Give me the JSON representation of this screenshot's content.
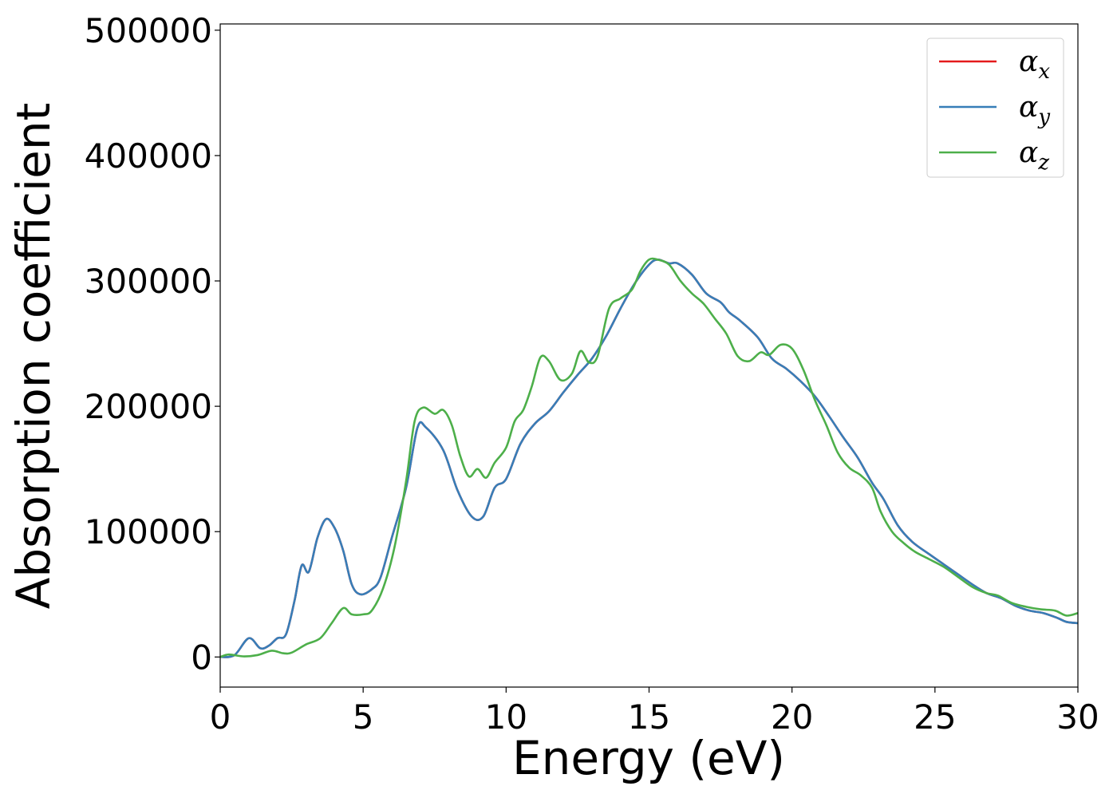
{
  "chart_data": {
    "type": "line",
    "xlabel": "Energy (eV)",
    "ylabel": "Absorption coefficient",
    "xlim": [
      0,
      30
    ],
    "ylim": [
      -24000,
      505000
    ],
    "x_ticks": [
      0,
      5,
      10,
      15,
      20,
      25,
      30
    ],
    "y_ticks": [
      0,
      100000,
      200000,
      300000,
      400000,
      500000
    ],
    "grid": false,
    "legend_position": "top-right",
    "series": [
      {
        "name": "α",
        "subscript": "x",
        "color": "#e41a1c",
        "points": [
          [
            0,
            0
          ],
          [
            0.5,
            1500
          ],
          [
            1,
            15000
          ],
          [
            1.4,
            7000
          ],
          [
            1.7,
            9000
          ],
          [
            2,
            15000
          ],
          [
            2.3,
            18000
          ],
          [
            2.6,
            45000
          ],
          [
            2.85,
            73000
          ],
          [
            3.1,
            68000
          ],
          [
            3.4,
            95000
          ],
          [
            3.7,
            110000
          ],
          [
            4,
            103000
          ],
          [
            4.3,
            85000
          ],
          [
            4.6,
            58000
          ],
          [
            4.9,
            50000
          ],
          [
            5.3,
            54000
          ],
          [
            5.6,
            63000
          ],
          [
            6,
            95000
          ],
          [
            6.5,
            135000
          ],
          [
            6.9,
            183000
          ],
          [
            7.2,
            183000
          ],
          [
            7.8,
            165000
          ],
          [
            8.3,
            133000
          ],
          [
            8.8,
            112000
          ],
          [
            9.2,
            112000
          ],
          [
            9.6,
            135000
          ],
          [
            10,
            142000
          ],
          [
            10.5,
            170000
          ],
          [
            11,
            186000
          ],
          [
            11.5,
            196000
          ],
          [
            12,
            211000
          ],
          [
            12.5,
            225000
          ],
          [
            13,
            238000
          ],
          [
            13.5,
            256000
          ],
          [
            14,
            278000
          ],
          [
            14.5,
            298000
          ],
          [
            15,
            313000
          ],
          [
            15.3,
            317000
          ],
          [
            15.7,
            314000
          ],
          [
            16,
            314000
          ],
          [
            16.5,
            305000
          ],
          [
            17,
            290000
          ],
          [
            17.5,
            283000
          ],
          [
            17.8,
            275000
          ],
          [
            18.2,
            268000
          ],
          [
            18.8,
            255000
          ],
          [
            19.3,
            238000
          ],
          [
            19.8,
            230000
          ],
          [
            20.3,
            220000
          ],
          [
            20.8,
            208000
          ],
          [
            21.3,
            192000
          ],
          [
            21.8,
            175000
          ],
          [
            22.3,
            159000
          ],
          [
            22.8,
            139000
          ],
          [
            23.2,
            126000
          ],
          [
            23.7,
            105000
          ],
          [
            24.2,
            92000
          ],
          [
            24.8,
            82000
          ],
          [
            25.3,
            74000
          ],
          [
            25.8,
            66000
          ],
          [
            26.3,
            58000
          ],
          [
            26.8,
            51000
          ],
          [
            27.3,
            47000
          ],
          [
            27.8,
            41000
          ],
          [
            28.3,
            37000
          ],
          [
            28.8,
            35000
          ],
          [
            29.3,
            31000
          ],
          [
            29.6,
            28000
          ],
          [
            30,
            27000
          ]
        ]
      },
      {
        "name": "α",
        "subscript": "y",
        "color": "#377eb8",
        "points": [
          [
            0,
            0
          ],
          [
            0.5,
            1500
          ],
          [
            1,
            15000
          ],
          [
            1.4,
            7000
          ],
          [
            1.7,
            9000
          ],
          [
            2,
            15000
          ],
          [
            2.3,
            18000
          ],
          [
            2.6,
            45000
          ],
          [
            2.85,
            73000
          ],
          [
            3.1,
            68000
          ],
          [
            3.4,
            95000
          ],
          [
            3.7,
            110000
          ],
          [
            4,
            103000
          ],
          [
            4.3,
            85000
          ],
          [
            4.6,
            58000
          ],
          [
            4.9,
            50000
          ],
          [
            5.3,
            54000
          ],
          [
            5.6,
            63000
          ],
          [
            6,
            95000
          ],
          [
            6.5,
            135000
          ],
          [
            6.9,
            183000
          ],
          [
            7.2,
            183000
          ],
          [
            7.8,
            165000
          ],
          [
            8.3,
            133000
          ],
          [
            8.8,
            112000
          ],
          [
            9.2,
            112000
          ],
          [
            9.6,
            135000
          ],
          [
            10,
            142000
          ],
          [
            10.5,
            170000
          ],
          [
            11,
            186000
          ],
          [
            11.5,
            196000
          ],
          [
            12,
            211000
          ],
          [
            12.5,
            225000
          ],
          [
            13,
            238000
          ],
          [
            13.5,
            256000
          ],
          [
            14,
            278000
          ],
          [
            14.5,
            298000
          ],
          [
            15,
            313000
          ],
          [
            15.3,
            317000
          ],
          [
            15.7,
            314000
          ],
          [
            16,
            314000
          ],
          [
            16.5,
            305000
          ],
          [
            17,
            290000
          ],
          [
            17.5,
            283000
          ],
          [
            17.8,
            275000
          ],
          [
            18.2,
            268000
          ],
          [
            18.8,
            255000
          ],
          [
            19.3,
            238000
          ],
          [
            19.8,
            230000
          ],
          [
            20.3,
            220000
          ],
          [
            20.8,
            208000
          ],
          [
            21.3,
            192000
          ],
          [
            21.8,
            175000
          ],
          [
            22.3,
            159000
          ],
          [
            22.8,
            139000
          ],
          [
            23.2,
            126000
          ],
          [
            23.7,
            105000
          ],
          [
            24.2,
            92000
          ],
          [
            24.8,
            82000
          ],
          [
            25.3,
            74000
          ],
          [
            25.8,
            66000
          ],
          [
            26.3,
            58000
          ],
          [
            26.8,
            51000
          ],
          [
            27.3,
            47000
          ],
          [
            27.8,
            41000
          ],
          [
            28.3,
            37000
          ],
          [
            28.8,
            35000
          ],
          [
            29.3,
            31000
          ],
          [
            29.6,
            28000
          ],
          [
            30,
            27000
          ]
        ]
      },
      {
        "name": "α",
        "subscript": "z",
        "color": "#4daf4a",
        "points": [
          [
            0,
            0
          ],
          [
            0.3,
            2000
          ],
          [
            0.8,
            500
          ],
          [
            1.3,
            1500
          ],
          [
            1.8,
            5000
          ],
          [
            2.2,
            3000
          ],
          [
            2.5,
            3500
          ],
          [
            3,
            10000
          ],
          [
            3.5,
            15000
          ],
          [
            3.9,
            27000
          ],
          [
            4.3,
            39000
          ],
          [
            4.6,
            34000
          ],
          [
            5,
            34000
          ],
          [
            5.3,
            37000
          ],
          [
            5.7,
            55000
          ],
          [
            6.1,
            88000
          ],
          [
            6.5,
            140000
          ],
          [
            6.8,
            188000
          ],
          [
            7.1,
            199000
          ],
          [
            7.5,
            194000
          ],
          [
            7.8,
            197000
          ],
          [
            8.1,
            185000
          ],
          [
            8.4,
            160000
          ],
          [
            8.7,
            144000
          ],
          [
            9,
            150000
          ],
          [
            9.3,
            143000
          ],
          [
            9.6,
            155000
          ],
          [
            10,
            167000
          ],
          [
            10.3,
            188000
          ],
          [
            10.6,
            197000
          ],
          [
            10.9,
            216000
          ],
          [
            11.2,
            239000
          ],
          [
            11.5,
            236000
          ],
          [
            11.9,
            221000
          ],
          [
            12.3,
            226000
          ],
          [
            12.6,
            244000
          ],
          [
            12.9,
            235000
          ],
          [
            13.2,
            240000
          ],
          [
            13.6,
            278000
          ],
          [
            14,
            286000
          ],
          [
            14.4,
            293000
          ],
          [
            14.7,
            308000
          ],
          [
            15,
            317000
          ],
          [
            15.3,
            317000
          ],
          [
            15.7,
            313000
          ],
          [
            16.1,
            300000
          ],
          [
            16.5,
            290000
          ],
          [
            16.9,
            282000
          ],
          [
            17.3,
            270000
          ],
          [
            17.7,
            258000
          ],
          [
            18.1,
            240000
          ],
          [
            18.5,
            236000
          ],
          [
            18.9,
            243000
          ],
          [
            19.2,
            241000
          ],
          [
            19.6,
            249000
          ],
          [
            20,
            246000
          ],
          [
            20.4,
            229000
          ],
          [
            20.8,
            205000
          ],
          [
            21.2,
            185000
          ],
          [
            21.6,
            163000
          ],
          [
            22,
            151000
          ],
          [
            22.4,
            145000
          ],
          [
            22.8,
            135000
          ],
          [
            23.1,
            116000
          ],
          [
            23.5,
            100000
          ],
          [
            23.9,
            91000
          ],
          [
            24.3,
            84000
          ],
          [
            24.8,
            78000
          ],
          [
            25.3,
            72000
          ],
          [
            25.8,
            64000
          ],
          [
            26.3,
            56000
          ],
          [
            26.8,
            51000
          ],
          [
            27.2,
            49000
          ],
          [
            27.7,
            43000
          ],
          [
            28.2,
            40000
          ],
          [
            28.7,
            38000
          ],
          [
            29.2,
            37000
          ],
          [
            29.6,
            33000
          ],
          [
            30,
            35000
          ]
        ]
      }
    ]
  }
}
